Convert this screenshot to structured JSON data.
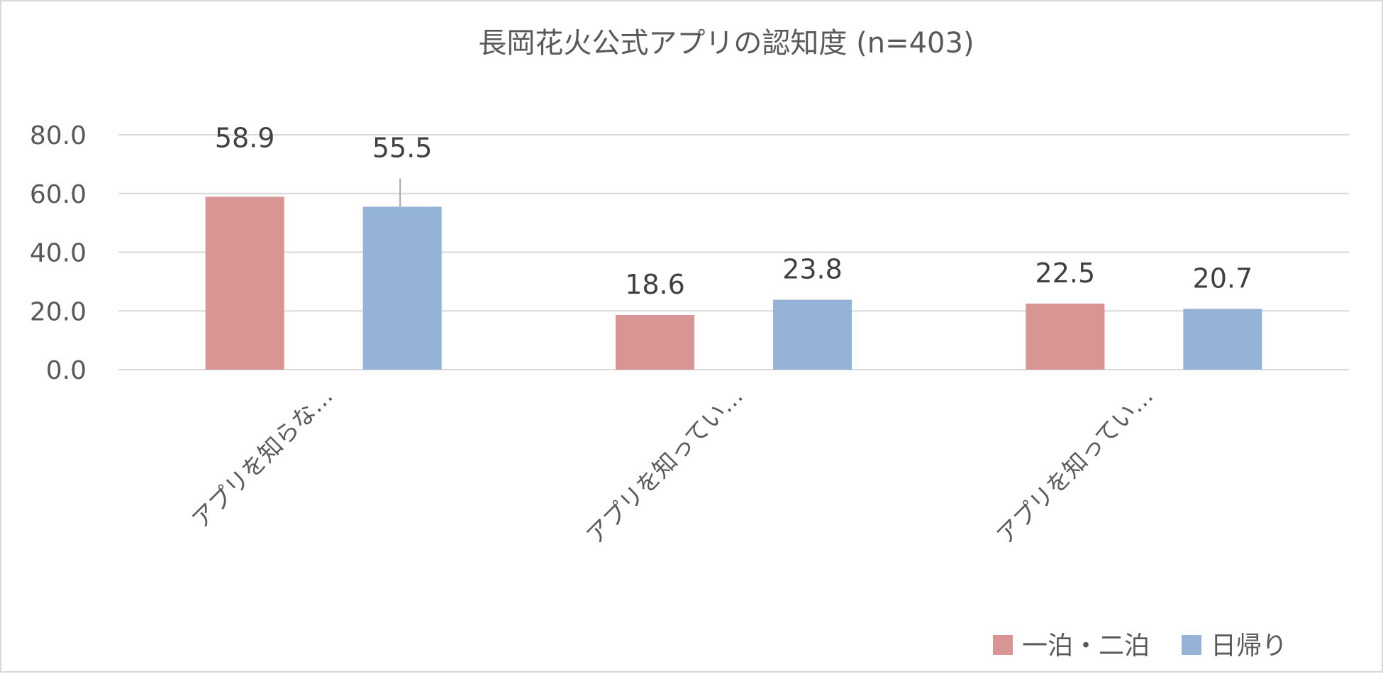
{
  "chart_data": {
    "type": "bar",
    "title": "長岡花火公式アプリの認知度 (n=403)",
    "categories": [
      "アプリを知らな…",
      "アプリを知ってい…",
      "アプリを知ってい…"
    ],
    "series": [
      {
        "name": "一泊・二泊",
        "values": [
          58.9,
          18.6,
          22.5
        ],
        "color": "#d99594"
      },
      {
        "name": "日帰り",
        "values": [
          55.5,
          23.8,
          20.7
        ],
        "color": "#95b3d7"
      }
    ],
    "y_ticks": [
      "0.0",
      "20.0",
      "40.0",
      "60.0",
      "80.0"
    ],
    "ylim": [
      0,
      80
    ],
    "grid": true,
    "legend_position": "bottom-right",
    "data_labels": true
  }
}
